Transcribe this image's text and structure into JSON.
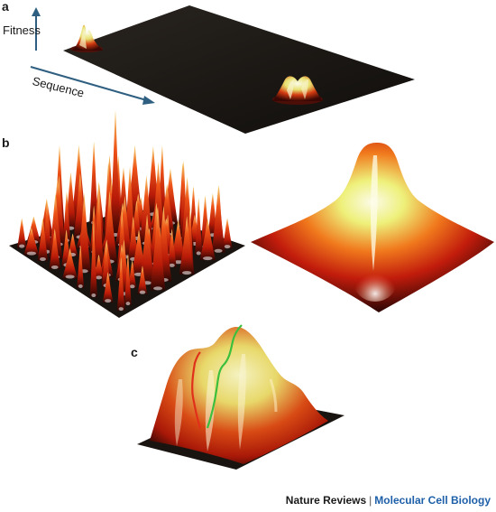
{
  "panels": {
    "a": {
      "label": "a",
      "axis_fitness": "Fitness",
      "axis_sequence": "Sequence"
    },
    "b": {
      "label": "b"
    },
    "c": {
      "label": "c"
    }
  },
  "credit": {
    "publisher": "Nature Reviews",
    "separator": "|",
    "journal": "Molecular Cell Biology"
  },
  "colors": {
    "plane": "#1c1a17",
    "axis_arrow": "#2f5f80",
    "peak_dark": "#4a0b05",
    "peak_red": "#d0200a",
    "peak_orange": "#f26c18",
    "peak_yellow": "#f4ea7a",
    "peak_white": "#fbfae8",
    "path_red": "#e0301a",
    "path_green": "#3cbf3c",
    "credit_journal": "#1d5fa8"
  }
}
